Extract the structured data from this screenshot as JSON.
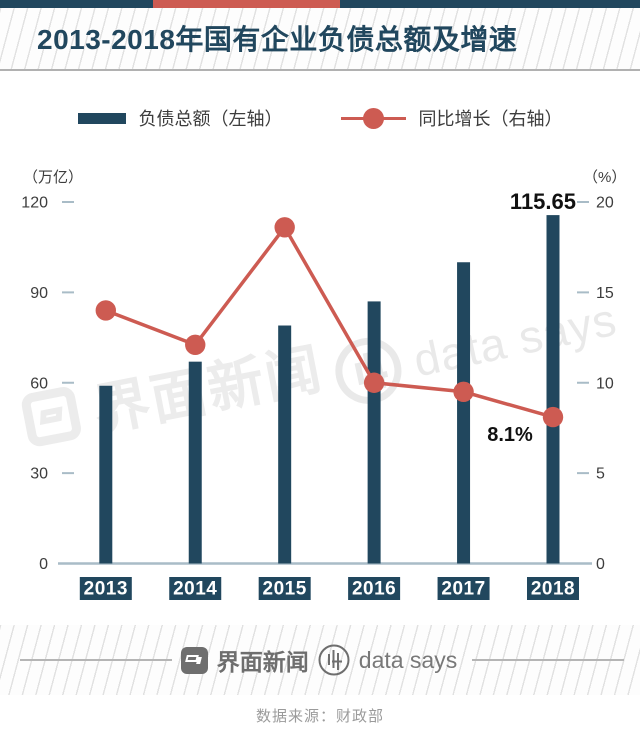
{
  "header": {
    "title": "2013-2018年国有企业负债总额及增速"
  },
  "legend": {
    "bar_label": "负债总额（左轴）",
    "line_label": "同比增长（右轴）"
  },
  "axes": {
    "left_unit": "（万亿）",
    "right_unit": "（%）"
  },
  "chart_data": {
    "type": "bar",
    "combo": "bar+line",
    "categories": [
      "2013",
      "2014",
      "2015",
      "2016",
      "2017",
      "2018"
    ],
    "series": [
      {
        "name": "负债总额（左轴）",
        "type": "bar",
        "axis": "left",
        "values": [
          59,
          67,
          79,
          87,
          100,
          115.65
        ]
      },
      {
        "name": "同比增长（右轴）",
        "type": "line",
        "axis": "right",
        "values": [
          14.0,
          12.1,
          18.6,
          10.0,
          9.5,
          8.1
        ]
      }
    ],
    "title": "2013-2018年国有企业负债总额及增速",
    "xlabel": "",
    "ylabel_left": "（万亿）",
    "ylabel_right": "（%）",
    "left_axis": {
      "range": [
        0,
        120
      ],
      "ticks": [
        0,
        30,
        60,
        90,
        120
      ]
    },
    "right_axis": {
      "range": [
        0,
        20
      ],
      "ticks": [
        0,
        5,
        10,
        15,
        20
      ]
    },
    "grid": false,
    "legend_position": "top",
    "annotations": [
      {
        "series": "bar",
        "category": "2018",
        "text": "115.65"
      },
      {
        "series": "line",
        "category": "2018",
        "text": "8.1%"
      }
    ],
    "colors": {
      "bar": "#21475e",
      "line": "#cd5b52",
      "axis": "#a9bcc7",
      "tick_text": "#3d3d3d",
      "annotation_text": "#111111"
    }
  },
  "watermarks": {
    "jiemian": "界面新闻",
    "datasays": "data says"
  },
  "footer": {
    "jiemian": "界面新闻",
    "datasays": "data says",
    "source": "数据来源：财政部"
  }
}
